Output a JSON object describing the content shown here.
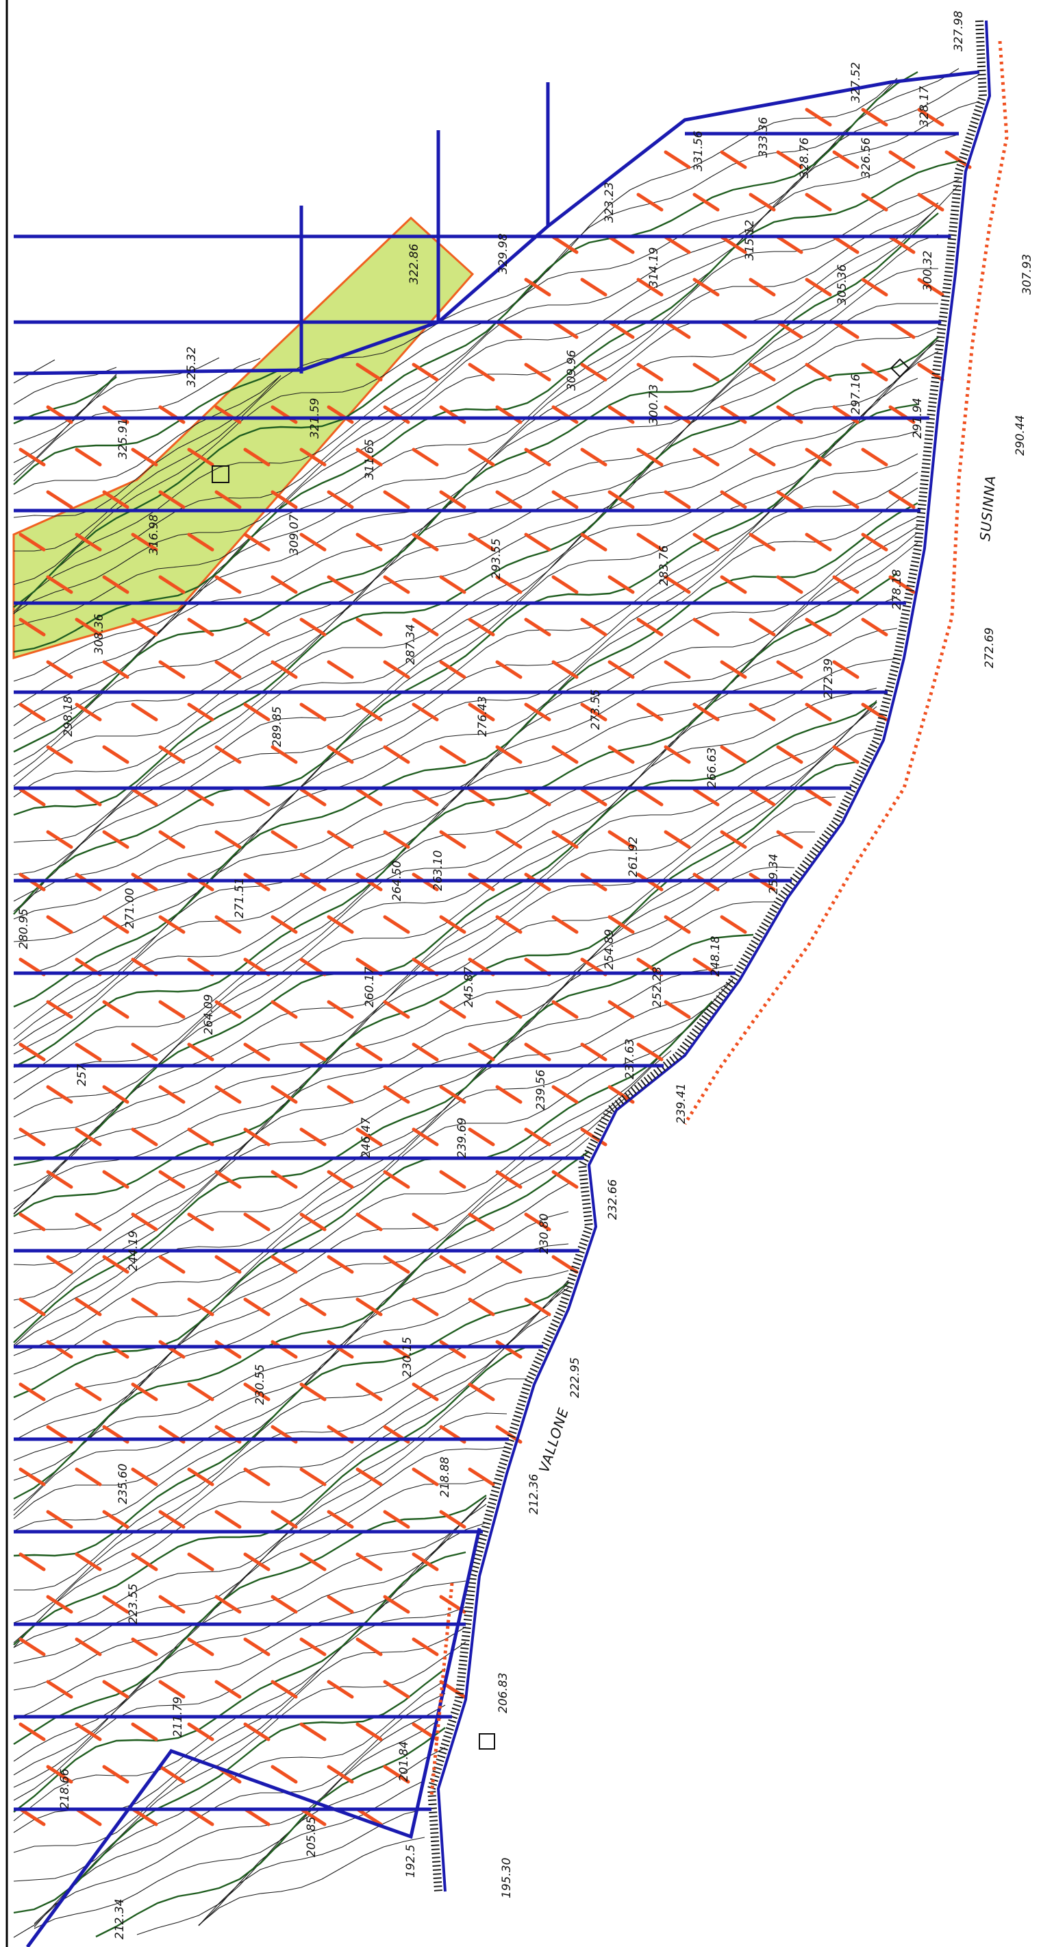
{
  "map": {
    "rivers": [
      {
        "name": "VALLONE"
      },
      {
        "name": "SUSINNA"
      }
    ],
    "elevations": [
      "327.98",
      "327.52",
      "328.17",
      "333.36",
      "331.56",
      "328.76",
      "326.56",
      "315.12",
      "323.23",
      "314.19",
      "305.36",
      "300.32",
      "307.93",
      "329.98",
      "322.86",
      "309.96",
      "300.73",
      "297.16",
      "291.94",
      "290.44",
      "325.32",
      "325.91",
      "321.59",
      "311.65",
      "309.07",
      "293.55",
      "283.76",
      "278.18",
      "272.69",
      "316.98",
      "308.36",
      "287.34",
      "298.18",
      "289.85",
      "276.43",
      "273.55",
      "272.39",
      "266.63",
      "280.95",
      "271.00",
      "271.51",
      "264.50",
      "263.10",
      "261.92",
      "259.34",
      "264.09",
      "260.17",
      "245.87",
      "254.89",
      "252.28",
      "248.18",
      "257",
      "246.47",
      "239.69",
      "239.56",
      "237.63",
      "239.41",
      "244.19",
      "232.66",
      "230.80",
      "230.55",
      "230.15",
      "222.95",
      "235.60",
      "218.88",
      "212.36",
      "223.55",
      "211.79",
      "206.83",
      "201.84",
      "218.66",
      "205.85",
      "192.5",
      "195.30",
      "212.34"
    ],
    "colors": {
      "contour": "#1a1a1a",
      "index_contour": "#1f5d1f",
      "parcel": "#1a1ab0",
      "hatch": "#f05020",
      "highlight": "#c8e26a",
      "highlight_border": "#f06020"
    }
  }
}
